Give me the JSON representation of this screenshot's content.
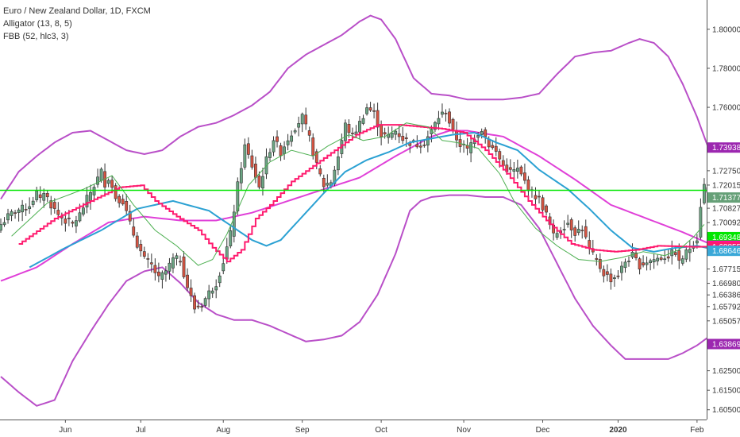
{
  "legend": {
    "symbol": "Euro / New Zealand Dollar, 1D, FXCM",
    "indicator1": "Alligator (13, 8, 5)",
    "indicator2": "FBB (52, hlc3, 3)"
  },
  "chart_data": {
    "type": "candlestick",
    "ylim": [
      1.6,
      1.815
    ],
    "y_ticks": [
      "1.80000",
      "1.78000",
      "1.76000",
      "1.72750",
      "1.72015",
      "1.71421",
      "1.70827",
      "1.70092",
      "1.67715",
      "1.66980",
      "1.66386",
      "1.65792",
      "1.65057",
      "1.62500",
      "1.61500",
      "1.60500"
    ],
    "y_tick_values": [
      1.8,
      1.78,
      1.76,
      1.7275,
      1.72015,
      1.71421,
      1.70827,
      1.70092,
      1.67715,
      1.6698,
      1.66386,
      1.65792,
      1.65057,
      1.625,
      1.615,
      1.605
    ],
    "x_ticks": [
      {
        "label": "Jun",
        "index": 18
      },
      {
        "label": "Jul",
        "index": 39
      },
      {
        "label": "Aug",
        "index": 62
      },
      {
        "label": "Sep",
        "index": 84
      },
      {
        "label": "Oct",
        "index": 106
      },
      {
        "label": "Nov",
        "index": 129
      },
      {
        "label": "Dec",
        "index": 151
      },
      {
        "label": "2020",
        "index": 172,
        "bold": true
      },
      {
        "label": "Feb",
        "index": 194
      }
    ],
    "horizontal_line": {
      "value": 1.7175,
      "color": "#00e600"
    },
    "price_badges": [
      {
        "text": "1.73938",
        "value": 1.73938,
        "color": "#9c27b0"
      },
      {
        "text": "1.71377",
        "value": 1.71377,
        "color": "#66a078"
      },
      {
        "text": "1.69348",
        "value": 1.69348,
        "color": "#00e600"
      },
      {
        "text": "1.68904",
        "value": 1.68904,
        "color": "#ff00cc"
      },
      {
        "text": "1.68855",
        "value": 1.68855,
        "color": "#ff1a6e"
      },
      {
        "text": "1.68646",
        "value": 1.68646,
        "color": "#3aa8d8"
      },
      {
        "text": "1.63869",
        "value": 1.63869,
        "color": "#9c27b0"
      }
    ],
    "series": [
      {
        "name": "Upper band",
        "color": "#b94fc8",
        "width": 2,
        "offset": 0,
        "anchors": [
          [
            0,
            1.713
          ],
          [
            5,
            1.727
          ],
          [
            10,
            1.735
          ],
          [
            15,
            1.742
          ],
          [
            20,
            1.747
          ],
          [
            25,
            1.748
          ],
          [
            30,
            1.743
          ],
          [
            35,
            1.738
          ],
          [
            40,
            1.736
          ],
          [
            45,
            1.738
          ],
          [
            50,
            1.745
          ],
          [
            55,
            1.75
          ],
          [
            60,
            1.752
          ],
          [
            65,
            1.756
          ],
          [
            70,
            1.761
          ],
          [
            75,
            1.768
          ],
          [
            80,
            1.78
          ],
          [
            85,
            1.787
          ],
          [
            90,
            1.792
          ],
          [
            95,
            1.797
          ],
          [
            100,
            1.804
          ],
          [
            103,
            1.807
          ],
          [
            106,
            1.805
          ],
          [
            110,
            1.795
          ],
          [
            115,
            1.775
          ],
          [
            120,
            1.767
          ],
          [
            125,
            1.766
          ],
          [
            130,
            1.764
          ],
          [
            135,
            1.764
          ],
          [
            140,
            1.764
          ],
          [
            145,
            1.765
          ],
          [
            150,
            1.767
          ],
          [
            155,
            1.777
          ],
          [
            160,
            1.786
          ],
          [
            165,
            1.788
          ],
          [
            170,
            1.789
          ],
          [
            175,
            1.793
          ],
          [
            178,
            1.795
          ],
          [
            182,
            1.793
          ],
          [
            186,
            1.786
          ],
          [
            190,
            1.772
          ],
          [
            194,
            1.755
          ],
          [
            197,
            1.74
          ]
        ]
      },
      {
        "name": "Basis",
        "color": "#e040d8",
        "width": 2,
        "offset": 0,
        "anchors": [
          [
            0,
            1.671
          ],
          [
            10,
            1.678
          ],
          [
            20,
            1.69
          ],
          [
            30,
            1.701
          ],
          [
            40,
            1.704
          ],
          [
            50,
            1.702
          ],
          [
            60,
            1.702
          ],
          [
            70,
            1.706
          ],
          [
            80,
            1.712
          ],
          [
            90,
            1.718
          ],
          [
            100,
            1.724
          ],
          [
            110,
            1.735
          ],
          [
            120,
            1.745
          ],
          [
            125,
            1.748
          ],
          [
            130,
            1.748
          ],
          [
            140,
            1.745
          ],
          [
            150,
            1.735
          ],
          [
            160,
            1.723
          ],
          [
            170,
            1.71
          ],
          [
            180,
            1.703
          ],
          [
            190,
            1.696
          ],
          [
            197,
            1.6905
          ]
        ]
      },
      {
        "name": "Lower band",
        "color": "#b94fc8",
        "width": 2,
        "offset": 0,
        "anchors": [
          [
            0,
            1.622
          ],
          [
            5,
            1.614
          ],
          [
            10,
            1.607
          ],
          [
            15,
            1.61
          ],
          [
            20,
            1.63
          ],
          [
            25,
            1.645
          ],
          [
            30,
            1.659
          ],
          [
            35,
            1.671
          ],
          [
            40,
            1.676
          ],
          [
            45,
            1.678
          ],
          [
            50,
            1.67
          ],
          [
            55,
            1.66
          ],
          [
            60,
            1.654
          ],
          [
            65,
            1.651
          ],
          [
            70,
            1.651
          ],
          [
            75,
            1.648
          ],
          [
            80,
            1.644
          ],
          [
            85,
            1.64
          ],
          [
            90,
            1.641
          ],
          [
            95,
            1.643
          ],
          [
            100,
            1.65
          ],
          [
            105,
            1.664
          ],
          [
            110,
            1.685
          ],
          [
            114,
            1.707
          ],
          [
            117,
            1.712
          ],
          [
            120,
            1.714
          ],
          [
            125,
            1.715
          ],
          [
            130,
            1.715
          ],
          [
            135,
            1.714
          ],
          [
            140,
            1.714
          ],
          [
            145,
            1.71
          ],
          [
            150,
            1.698
          ],
          [
            155,
            1.68
          ],
          [
            160,
            1.662
          ],
          [
            165,
            1.648
          ],
          [
            170,
            1.638
          ],
          [
            174,
            1.631
          ],
          [
            178,
            1.631
          ],
          [
            182,
            1.631
          ],
          [
            186,
            1.631
          ],
          [
            190,
            1.634
          ],
          [
            194,
            1.638
          ],
          [
            197,
            1.642
          ]
        ]
      },
      {
        "name": "Jaw",
        "color": "#2ba1d3",
        "width": 2,
        "offset": 8,
        "anchors": [
          [
            0,
            1.678
          ],
          [
            10,
            1.688
          ],
          [
            20,
            1.697
          ],
          [
            30,
            1.708
          ],
          [
            40,
            1.712
          ],
          [
            50,
            1.707
          ],
          [
            58,
            1.697
          ],
          [
            62,
            1.692
          ],
          [
            66,
            1.689
          ],
          [
            70,
            1.692
          ],
          [
            76,
            1.704
          ],
          [
            82,
            1.716
          ],
          [
            88,
            1.727
          ],
          [
            94,
            1.733
          ],
          [
            100,
            1.737
          ],
          [
            106,
            1.742
          ],
          [
            112,
            1.744
          ],
          [
            118,
            1.746
          ],
          [
            124,
            1.747
          ],
          [
            130,
            1.742
          ],
          [
            136,
            1.738
          ],
          [
            142,
            1.728
          ],
          [
            150,
            1.718
          ],
          [
            156,
            1.708
          ],
          [
            162,
            1.697
          ],
          [
            168,
            1.688
          ],
          [
            174,
            1.686
          ],
          [
            180,
            1.688
          ],
          [
            186,
            1.689
          ],
          [
            190,
            1.6875
          ]
        ]
      },
      {
        "name": "Teeth",
        "color": "#ff1a6e",
        "width": 2,
        "offset": 5,
        "stepped": true,
        "anchors": [
          [
            0,
            1.69
          ],
          [
            10,
            1.703
          ],
          [
            20,
            1.712
          ],
          [
            28,
            1.719
          ],
          [
            34,
            1.72
          ],
          [
            38,
            1.712
          ],
          [
            44,
            1.704
          ],
          [
            50,
            1.697
          ],
          [
            54,
            1.688
          ],
          [
            58,
            1.681
          ],
          [
            62,
            1.687
          ],
          [
            66,
            1.703
          ],
          [
            70,
            1.71
          ],
          [
            76,
            1.722
          ],
          [
            82,
            1.73
          ],
          [
            88,
            1.738
          ],
          [
            94,
            1.746
          ],
          [
            100,
            1.751
          ],
          [
            106,
            1.751
          ],
          [
            112,
            1.75
          ],
          [
            118,
            1.749
          ],
          [
            124,
            1.747
          ],
          [
            130,
            1.738
          ],
          [
            136,
            1.726
          ],
          [
            142,
            1.712
          ],
          [
            148,
            1.7
          ],
          [
            154,
            1.69
          ],
          [
            160,
            1.687
          ],
          [
            166,
            1.686
          ],
          [
            172,
            1.687
          ],
          [
            178,
            1.689
          ],
          [
            188,
            1.6885
          ],
          [
            192,
            1.6886
          ]
        ]
      },
      {
        "name": "Lips",
        "color": "#4caf50",
        "width": 1,
        "offset": 3,
        "anchors": [
          [
            0,
            1.694
          ],
          [
            10,
            1.711
          ],
          [
            20,
            1.718
          ],
          [
            28,
            1.725
          ],
          [
            34,
            1.71
          ],
          [
            40,
            1.697
          ],
          [
            46,
            1.689
          ],
          [
            52,
            1.679
          ],
          [
            56,
            1.682
          ],
          [
            60,
            1.695
          ],
          [
            66,
            1.72
          ],
          [
            72,
            1.732
          ],
          [
            78,
            1.738
          ],
          [
            84,
            1.735
          ],
          [
            88,
            1.74
          ],
          [
            94,
            1.746
          ],
          [
            98,
            1.743
          ],
          [
            104,
            1.745
          ],
          [
            110,
            1.752
          ],
          [
            116,
            1.75
          ],
          [
            120,
            1.743
          ],
          [
            124,
            1.742
          ],
          [
            130,
            1.739
          ],
          [
            136,
            1.726
          ],
          [
            140,
            1.712
          ],
          [
            146,
            1.698
          ],
          [
            152,
            1.689
          ],
          [
            158,
            1.682
          ],
          [
            164,
            1.681
          ],
          [
            170,
            1.683
          ],
          [
            176,
            1.686
          ],
          [
            182,
            1.684
          ],
          [
            186,
            1.687
          ],
          [
            190,
            1.6935
          ],
          [
            193,
            1.7
          ]
        ]
      }
    ],
    "candle_anchors": [
      [
        0,
        1.7
      ],
      [
        2,
        1.704
      ],
      [
        4,
        1.707
      ],
      [
        6,
        1.708
      ],
      [
        8,
        1.71
      ],
      [
        10,
        1.716
      ],
      [
        11,
        1.712
      ],
      [
        12,
        1.717
      ],
      [
        14,
        1.71
      ],
      [
        16,
        1.705
      ],
      [
        18,
        1.702
      ],
      [
        20,
        1.7
      ],
      [
        22,
        1.705
      ],
      [
        24,
        1.713
      ],
      [
        26,
        1.72
      ],
      [
        28,
        1.727
      ],
      [
        29,
        1.721
      ],
      [
        30,
        1.724
      ],
      [
        32,
        1.714
      ],
      [
        34,
        1.712
      ],
      [
        36,
        1.7
      ],
      [
        38,
        1.69
      ],
      [
        40,
        1.682
      ],
      [
        42,
        1.679
      ],
      [
        44,
        1.672
      ],
      [
        46,
        1.676
      ],
      [
        48,
        1.682
      ],
      [
        50,
        1.682
      ],
      [
        52,
        1.668
      ],
      [
        54,
        1.657
      ],
      [
        56,
        1.659
      ],
      [
        58,
        1.665
      ],
      [
        60,
        1.67
      ],
      [
        62,
        1.681
      ],
      [
        64,
        1.695
      ],
      [
        66,
        1.72
      ],
      [
        68,
        1.74
      ],
      [
        70,
        1.73
      ],
      [
        72,
        1.719
      ],
      [
        74,
        1.733
      ],
      [
        76,
        1.744
      ],
      [
        78,
        1.737
      ],
      [
        80,
        1.744
      ],
      [
        82,
        1.75
      ],
      [
        84,
        1.755
      ],
      [
        86,
        1.744
      ],
      [
        88,
        1.73
      ],
      [
        90,
        1.72
      ],
      [
        92,
        1.722
      ],
      [
        94,
        1.735
      ],
      [
        96,
        1.751
      ],
      [
        98,
        1.745
      ],
      [
        100,
        1.752
      ],
      [
        102,
        1.76
      ],
      [
        104,
        1.757
      ],
      [
        106,
        1.746
      ],
      [
        108,
        1.745
      ],
      [
        110,
        1.748
      ],
      [
        112,
        1.744
      ],
      [
        114,
        1.742
      ],
      [
        116,
        1.741
      ],
      [
        118,
        1.742
      ],
      [
        120,
        1.748
      ],
      [
        122,
        1.755
      ],
      [
        124,
        1.758
      ],
      [
        126,
        1.747
      ],
      [
        128,
        1.741
      ],
      [
        130,
        1.738
      ],
      [
        132,
        1.745
      ],
      [
        134,
        1.749
      ],
      [
        136,
        1.741
      ],
      [
        138,
        1.737
      ],
      [
        140,
        1.73
      ],
      [
        142,
        1.727
      ],
      [
        144,
        1.728
      ],
      [
        146,
        1.722
      ],
      [
        148,
        1.716
      ],
      [
        150,
        1.713
      ],
      [
        152,
        1.705
      ],
      [
        154,
        1.694
      ],
      [
        156,
        1.698
      ],
      [
        158,
        1.701
      ],
      [
        160,
        1.696
      ],
      [
        162,
        1.698
      ],
      [
        164,
        1.687
      ],
      [
        166,
        1.681
      ],
      [
        168,
        1.675
      ],
      [
        170,
        1.672
      ],
      [
        172,
        1.674
      ],
      [
        174,
        1.681
      ],
      [
        176,
        1.684
      ],
      [
        178,
        1.679
      ],
      [
        180,
        1.681
      ],
      [
        182,
        1.682
      ],
      [
        184,
        1.683
      ],
      [
        186,
        1.684
      ],
      [
        188,
        1.686
      ],
      [
        189,
        1.68
      ],
      [
        190,
        1.683
      ],
      [
        192,
        1.688
      ],
      [
        194,
        1.693
      ],
      [
        195,
        1.71
      ],
      [
        196,
        1.72
      ],
      [
        197,
        1.716
      ]
    ]
  }
}
